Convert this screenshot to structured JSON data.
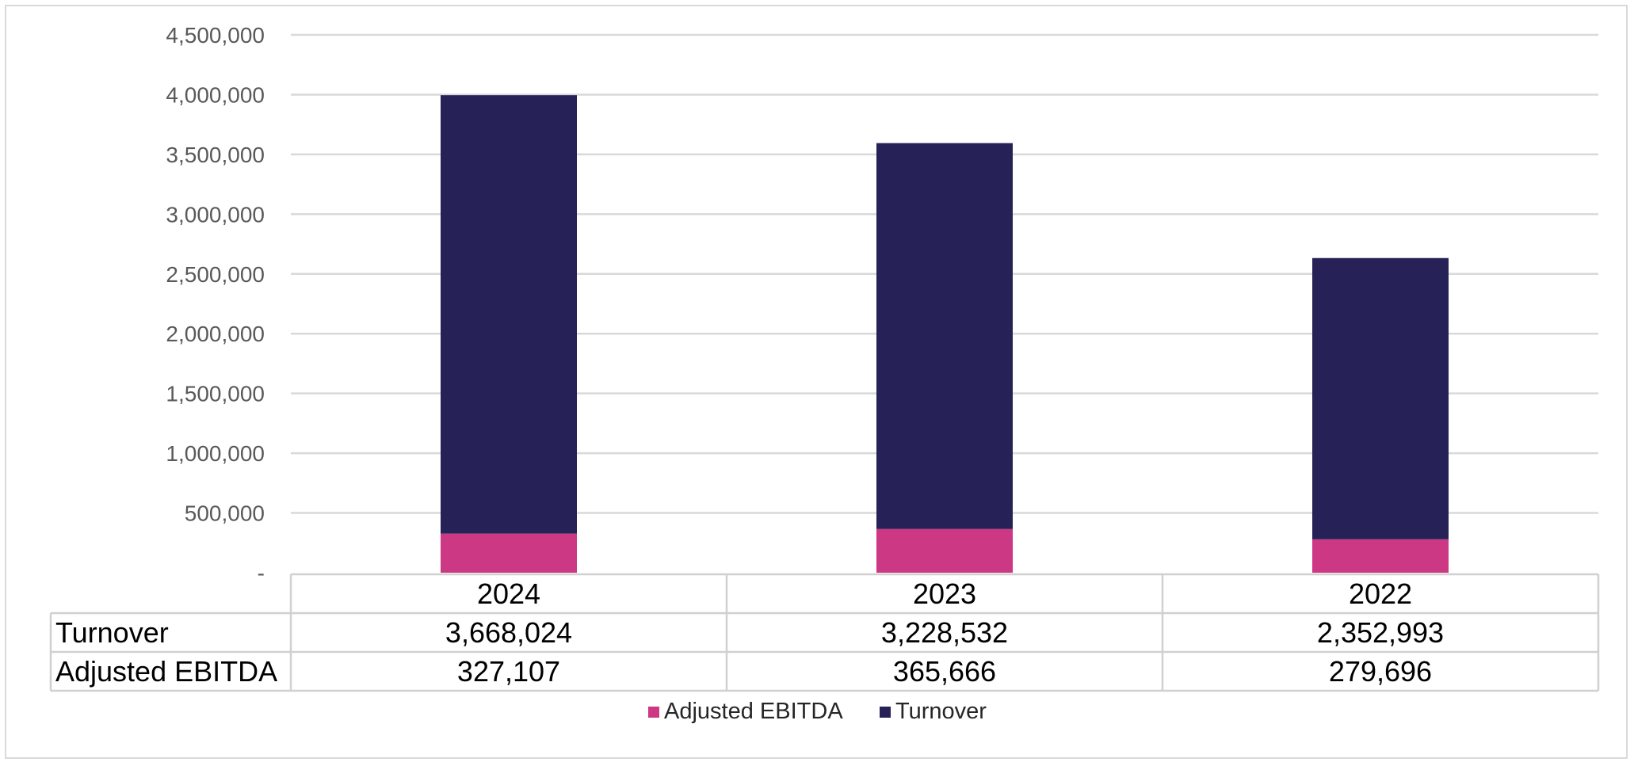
{
  "chart_data": {
    "type": "bar",
    "stacked": true,
    "categories": [
      "2024",
      "2023",
      "2022"
    ],
    "series": [
      {
        "name": "Adjusted EBITDA",
        "values": [
          327107,
          365666,
          279696
        ],
        "color": "#cc3883"
      },
      {
        "name": "Turnover",
        "values": [
          3668024,
          3228532,
          2352993
        ],
        "color": "#262257"
      }
    ],
    "ylim": [
      0,
      4500000
    ],
    "ytick_values": [
      0,
      500000,
      1000000,
      1500000,
      2000000,
      2500000,
      3000000,
      3500000,
      4000000,
      4500000
    ],
    "ytick_labels": [
      "-",
      "500,000",
      "1,000,000",
      "1,500,000",
      "2,000,000",
      "2,500,000",
      "3,000,000",
      "3,500,000",
      "4,000,000",
      "4,500,000"
    ],
    "grid": true,
    "legend_position": "bottom",
    "data_table": {
      "rows": [
        {
          "label": "Turnover",
          "values": [
            "3,668,024",
            "3,228,532",
            "2,352,993"
          ]
        },
        {
          "label": "Adjusted EBITDA",
          "values": [
            "327,107",
            "365,666",
            "279,696"
          ]
        }
      ]
    }
  }
}
